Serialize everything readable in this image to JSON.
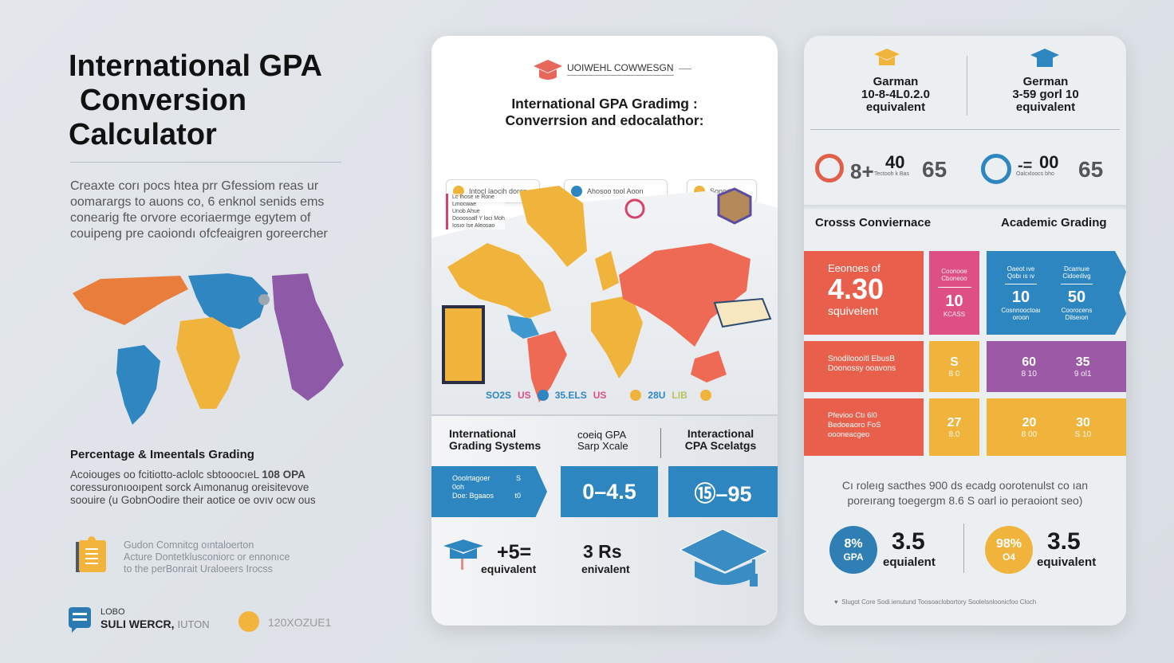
{
  "left": {
    "title": [
      "International GPA",
      "Conversion",
      "Calculator"
    ],
    "intro": [
      "Creaxte corı pocs htea prr Gfessiom  reas ur",
      "oomarargs to auons co,  6 enknol senids ems",
      "conearig fte orvore ecoriaermge egytem of",
      "couipeng pre caoiondı ofcfeaigren goreercher"
    ],
    "section_title": "Percentage & Imeentals Grading",
    "section_text": [
      "Acoiouges oo fcitiotto-aclolc sbtooocıeL",
      "coressuronıooıpent sorck Aımonanug oreisitevove",
      "soouire (u GobnOodire their aotice oe ovıv ocw ous"
    ],
    "section_highlight": "108 OPA",
    "note": [
      "Gudon Comnitcg oıntaloerton",
      "Acture Dontetklusconiorc or ennonıce",
      "to the perBonrait Uraloeers Irocss"
    ],
    "footer_logo_top": "LOBO",
    "footer_logo_bottom": "SULI WERCR,",
    "footer_logo_tail": "IUTON",
    "footer_code": "120XOZUE1"
  },
  "middle": {
    "header": "UOIWEHL COWWESGN",
    "title": [
      "International GPA Gradimg :",
      "Converrsion and edocalathor:"
    ],
    "pills": [
      "Intocl laocih doron",
      "Ahosoo tool Aoon",
      "Sonode"
    ],
    "map_legend_box": [
      "Lc Ihose ıe Rone",
      "Lmocwae",
      "Unob Ahue",
      "Dooosoalf Y loci Moh",
      "Iosıo Ise Aleosao"
    ],
    "map_labels": [
      "SO2S",
      "US",
      "35.ELS",
      "US",
      "28U",
      "LIB"
    ],
    "col_headers": [
      [
        "International",
        "Grading Systems"
      ],
      [
        "coeiq GPA",
        "Sarp Xcale"
      ],
      [
        "Interactional",
        "CPA Scelatgs"
      ]
    ],
    "blue_left": [
      [
        "Ooolrtagoer",
        "S"
      ],
      [
        "0oh",
        ""
      ],
      [
        "Doe: Bgaaos",
        "t0"
      ]
    ],
    "blue_mid": "0–4.5",
    "blue_right": "⑮–95",
    "bottom_left_value": "+5=",
    "bottom_left_label": "equivalent",
    "bottom_mid_value": "3 Rs",
    "bottom_mid_label": "enivalent"
  },
  "right": {
    "top": [
      {
        "name": "Garman",
        "range": "10-8-4L0.2.0",
        "label": "equivalent"
      },
      {
        "name": "German",
        "range": "3-59 gorl 10",
        "label": "equivalent"
      }
    ],
    "stats": [
      {
        "prefix": "8+",
        "value": "40",
        "sub": "Tectooh k Bas",
        "score": "65"
      },
      {
        "prefix": "-=",
        "value": "00",
        "sub": "Oalcxloocs bho",
        "score": "65"
      }
    ],
    "section_left": "Crosss Conviernace",
    "section_right": "Academic Grading",
    "grid": {
      "main": {
        "top": "Eeonoes of",
        "value": "4.30",
        "bottom": "squivelent"
      },
      "pink": {
        "top": [
          "Coonooe",
          "Cboneoo"
        ],
        "value": "10",
        "bottom": "KCASS"
      },
      "blue": [
        {
          "top": [
            "Oaeot ıve",
            "Qobı ıs ıv"
          ],
          "value": "10",
          "bottom": [
            "Cosnnooctoaı",
            "oroon"
          ]
        },
        {
          "top": [
            "Dcamuıe",
            "Cidoeılivg"
          ],
          "value": "50",
          "bottom": [
            "Coorocens",
            "Dilseıon"
          ]
        }
      ],
      "row2_label": [
        "Snodiloooitl EbusB",
        "Doonossy  ooavons"
      ],
      "row2_yellow": {
        "value": "S",
        "sub": "8 0"
      },
      "row2_purple": [
        {
          "value": "60",
          "sub": "8 10"
        },
        {
          "value": "35",
          "sub": "9 ol1"
        }
      ],
      "row3_label": [
        "Pfevioo Ctı 6l0",
        "Bedoeaoro FoS",
        "oooneacgeo"
      ],
      "row3_yellow": {
        "value": "27",
        "sub": "8.0"
      },
      "row3_right": [
        {
          "value": "20",
          "sub": "8 00"
        },
        {
          "value": "30",
          "sub": "S 10"
        }
      ]
    },
    "desc": [
      "Cı roleıg sacthes 900 ds ecadg oorotenulst co ıan",
      "poreırang toegergm  8.6 S oarl io peraoiont seo)"
    ],
    "circles": [
      {
        "pct": "8%",
        "sub": "GPA",
        "value": "3.5",
        "label": "equialent",
        "color": "#2f7fb5"
      },
      {
        "pct": "98%",
        "sub": "O4",
        "value": "3.5",
        "label": "equivalent",
        "color": "#f0b43c"
      }
    ],
    "footnote": "Slugot Core  Sodi.ienutund Toosoaclobortory Soolelsnloonicfoo Cloch"
  },
  "colors": {
    "red": "#e8604c",
    "pink": "#de4f86",
    "blue": "#2e86c1",
    "yellow": "#f0b43c",
    "purple": "#9b59a6"
  }
}
